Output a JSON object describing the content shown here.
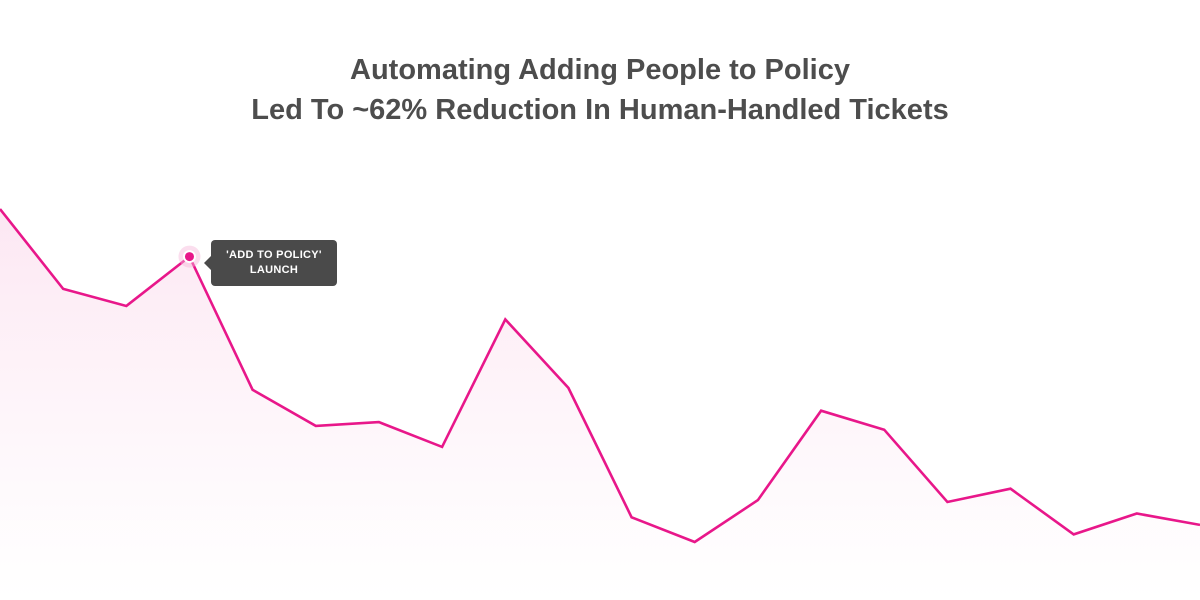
{
  "chart_data": {
    "type": "area",
    "title_lines": [
      "Automating Adding People to Policy",
      "Led To ~62% Reduction In Human-Handled Tickets"
    ],
    "xlabel": "",
    "ylabel": "",
    "grid": false,
    "series": [
      {
        "values": [
          100,
          79,
          74.5,
          87.5,
          52.5,
          43,
          44,
          37.5,
          71,
          53,
          19,
          12.5,
          23.5,
          47,
          42,
          23,
          26.5,
          14.5,
          20,
          17
        ]
      }
    ],
    "ylim": [
      0,
      100
    ],
    "annotations": [
      {
        "point_index": 3,
        "lines": [
          "'ADD TO POLICY'",
          "LAUNCH"
        ]
      }
    ],
    "colors": {
      "line": "#e8178a",
      "fill": "#fdeef6",
      "tooltip_bg": "#4a4a4a",
      "title": "#4d4d4d"
    }
  }
}
